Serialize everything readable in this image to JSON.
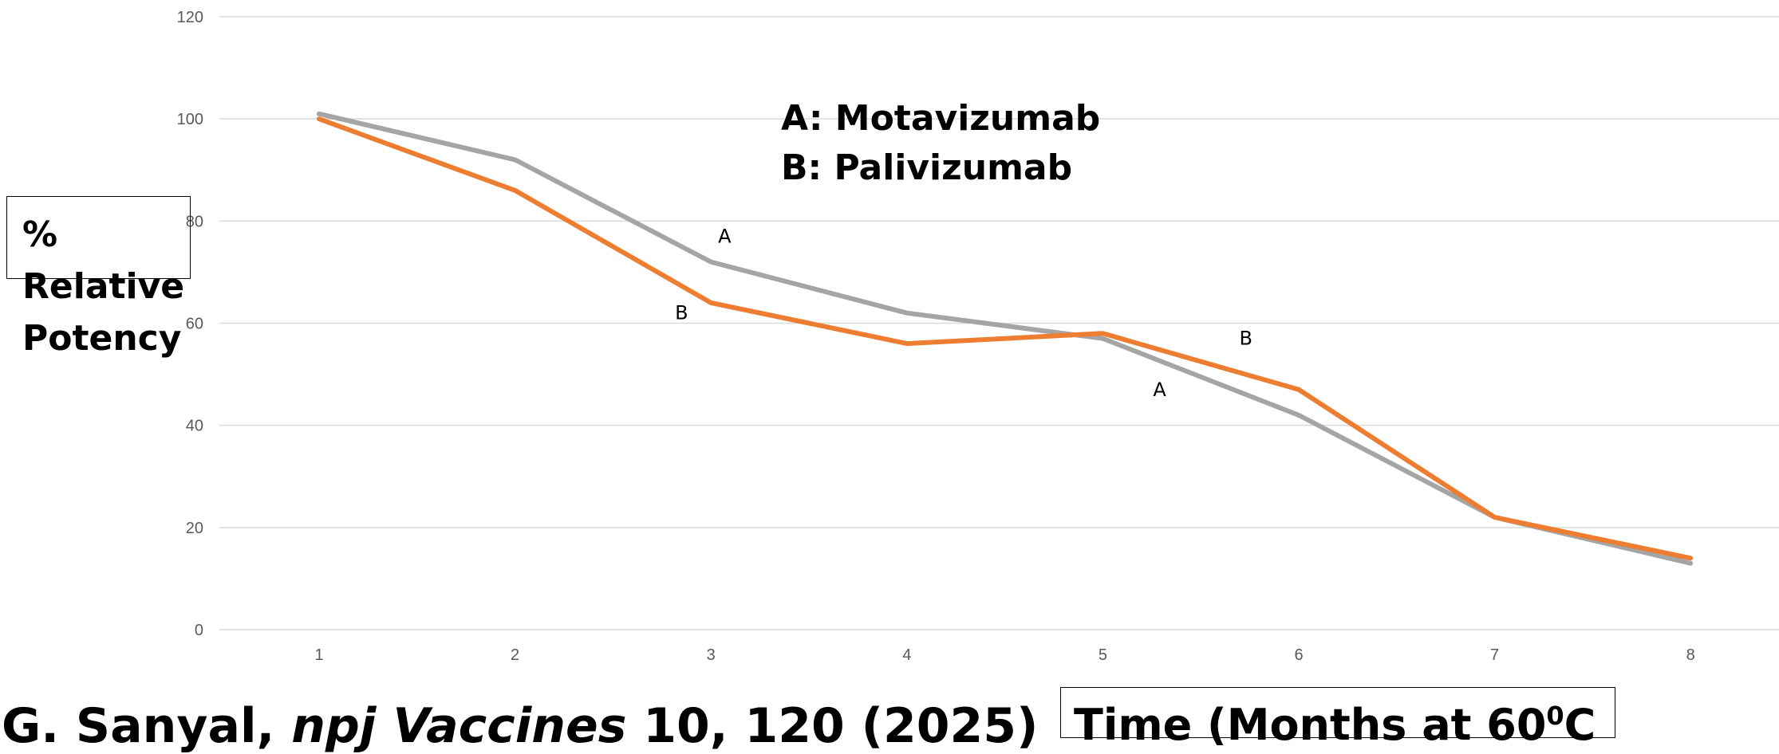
{
  "chart_data": {
    "type": "line",
    "categories": [
      "1",
      "2",
      "3",
      "4",
      "5",
      "6",
      "7",
      "8"
    ],
    "series": [
      {
        "name": "A",
        "color": "#a5a5a5",
        "values": [
          101,
          92,
          72,
          62,
          57,
          42,
          22,
          13
        ]
      },
      {
        "name": "B",
        "color": "#ed7d31",
        "values": [
          100,
          86,
          64,
          56,
          58,
          47,
          22,
          14
        ]
      }
    ],
    "ylim": [
      0,
      120
    ],
    "yticks": [
      0,
      20,
      40,
      60,
      80,
      100,
      120
    ],
    "grid": true,
    "legend": {
      "lines": [
        "A: Motavizumab",
        "B: Palivizumab"
      ]
    },
    "series_labels": [
      {
        "text": "A",
        "x": 3.07,
        "y": 77
      },
      {
        "text": "B",
        "x": 2.85,
        "y": 62
      },
      {
        "text": "B",
        "x": 5.73,
        "y": 57
      },
      {
        "text": "A",
        "x": 5.29,
        "y": 47
      }
    ],
    "ylabel": {
      "line1": "%",
      "line2": "Relative",
      "line3": "Potency"
    },
    "xlabel": {
      "text": "Time (Months at 60",
      "sup": "0",
      "suffix": "C"
    },
    "citation": {
      "authors": "G. Sanyal, ",
      "journal": "npj Vaccines",
      "ref": " 10, 120 (2025)"
    }
  }
}
